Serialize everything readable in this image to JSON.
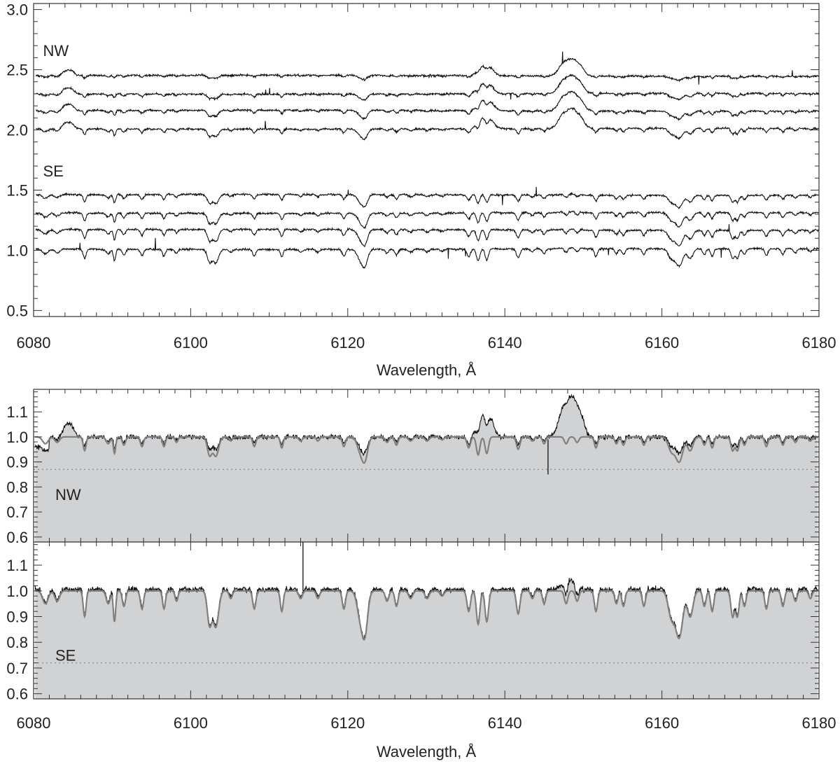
{
  "chart_data": [
    {
      "type": "line",
      "panel": "top",
      "xlabel": "Wavelength, Å",
      "ylabel": "",
      "xlim": [
        6080,
        6180
      ],
      "ylim": [
        0.45,
        3.05
      ],
      "x_ticks": [
        6080,
        6100,
        6120,
        6140,
        6160,
        6180
      ],
      "x_tick_labels": [
        "6080",
        "6100",
        "6120",
        "6140",
        "6160",
        "6180"
      ],
      "y_ticks": [
        0.5,
        1.0,
        1.5,
        2.0,
        2.5,
        3.0
      ],
      "y_tick_labels": [
        "0.5",
        "1.0",
        "1.5",
        "2.0",
        "2.5",
        "3.0"
      ],
      "line_color": "#111111",
      "annotations": [
        {
          "text": "NW",
          "x": 6081.2,
          "y": 2.66
        },
        {
          "text": "SE",
          "x": 6081.2,
          "y": 1.66
        }
      ],
      "series": [
        {
          "group": "NW",
          "offset": 2.45
        },
        {
          "group": "NW",
          "offset": 2.3
        },
        {
          "group": "NW",
          "offset": 2.16
        },
        {
          "group": "NW",
          "offset": 2.01
        },
        {
          "group": "SE",
          "offset": 1.46
        },
        {
          "group": "SE",
          "offset": 1.31
        },
        {
          "group": "SE",
          "offset": 1.17
        },
        {
          "group": "SE",
          "offset": 1.01
        }
      ]
    },
    {
      "type": "area",
      "panel": "middle",
      "label": "NW",
      "xlim": [
        6080,
        6180
      ],
      "ylim": [
        0.58,
        1.19
      ],
      "y_ticks": [
        0.6,
        0.7,
        0.8,
        0.9,
        1.0,
        1.1
      ],
      "y_tick_labels": [
        "0.6",
        "0.7",
        "0.8",
        "0.9",
        "1.0",
        "1.1"
      ],
      "dotted_level": 0.87,
      "observed_color": "#111111",
      "model_color": "#808080",
      "fill_color": "#d1d2d4"
    },
    {
      "type": "area",
      "panel": "bottom",
      "label": "SE",
      "xlabel": "Wavelength, Å",
      "xlim": [
        6080,
        6180
      ],
      "ylim": [
        0.58,
        1.19
      ],
      "x_ticks": [
        6080,
        6100,
        6120,
        6140,
        6160,
        6180
      ],
      "x_tick_labels": [
        "6080",
        "6100",
        "6120",
        "6140",
        "6160",
        "6180"
      ],
      "y_ticks": [
        0.6,
        0.7,
        0.8,
        0.9,
        1.0,
        1.1
      ],
      "y_tick_labels": [
        "0.6",
        "0.7",
        "0.8",
        "0.9",
        "1.0",
        "1.1"
      ],
      "dotted_level": 0.72,
      "observed_color": "#111111",
      "model_color": "#808080",
      "fill_color": "#d1d2d4"
    }
  ]
}
